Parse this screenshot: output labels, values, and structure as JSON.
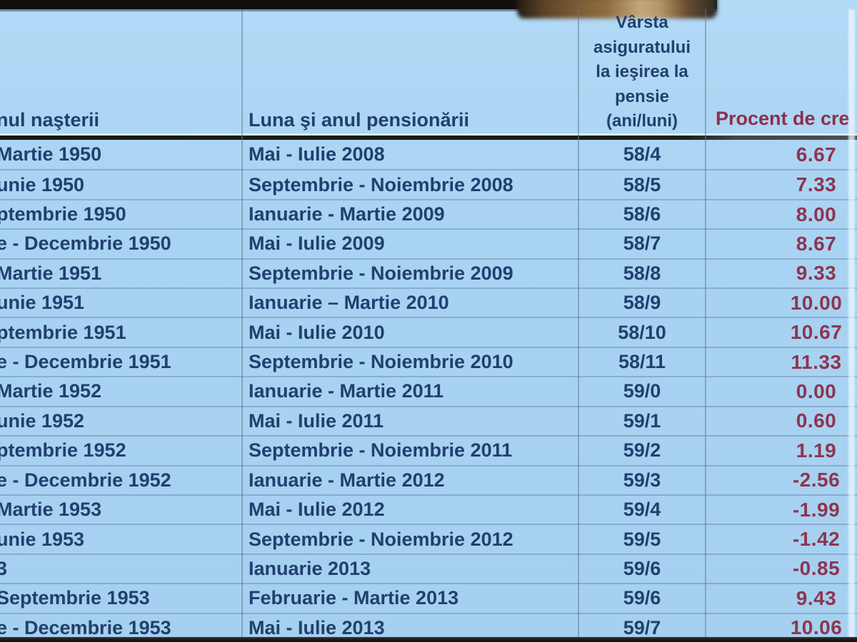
{
  "table": {
    "headers": {
      "birth": "nul naşterii",
      "pension": "Luna şi anul pensionării",
      "age": "Vârsta\nasiguratului\nla ieşirea la\npensie\n(ani/luni)",
      "procent": "Procent de cre"
    },
    "rows": [
      {
        "nastere": "Martie 1950",
        "pensionare": "Mai - Iulie 2008",
        "varsta": "58/4",
        "procent": "6.67"
      },
      {
        "nastere": "unie 1950",
        "pensionare": "Septembrie - Noiembrie 2008",
        "varsta": "58/5",
        "procent": "7.33"
      },
      {
        "nastere": "ptembrie 1950",
        "pensionare": "Ianuarie - Martie 2009",
        "varsta": "58/6",
        "procent": "8.00"
      },
      {
        "nastere": "e - Decembrie 1950",
        "pensionare": "Mai - Iulie 2009",
        "varsta": "58/7",
        "procent": "8.67"
      },
      {
        "nastere": "Martie 1951",
        "pensionare": "Septembrie - Noiembrie 2009",
        "varsta": "58/8",
        "procent": "9.33"
      },
      {
        "nastere": "unie 1951",
        "pensionare": "Ianuarie – Martie 2010",
        "varsta": "58/9",
        "procent": "10.00"
      },
      {
        "nastere": "ptembrie 1951",
        "pensionare": "Mai - Iulie 2010",
        "varsta": "58/10",
        "procent": "10.67"
      },
      {
        "nastere": "e - Decembrie 1951",
        "pensionare": "Septembrie - Noiembrie 2010",
        "varsta": "58/11",
        "procent": "11.33"
      },
      {
        "nastere": "Martie 1952",
        "pensionare": "Ianuarie - Martie 2011",
        "varsta": "59/0",
        "procent": "0.00"
      },
      {
        "nastere": "unie 1952",
        "pensionare": "Mai - Iulie 2011",
        "varsta": "59/1",
        "procent": "0.60"
      },
      {
        "nastere": "ptembrie 1952",
        "pensionare": "Septembrie - Noiembrie 2011",
        "varsta": "59/2",
        "procent": "1.19"
      },
      {
        "nastere": "e - Decembrie 1952",
        "pensionare": "Ianuarie - Martie 2012",
        "varsta": "59/3",
        "procent": "-2.56"
      },
      {
        "nastere": "Martie 1953",
        "pensionare": "Mai - Iulie 2012",
        "varsta": "59/4",
        "procent": "-1.99"
      },
      {
        "nastere": "unie 1953",
        "pensionare": "Septembrie - Noiembrie 2012",
        "varsta": "59/5",
        "procent": "-1.42"
      },
      {
        "nastere": "3",
        "pensionare": "Ianuarie 2013",
        "varsta": "59/6",
        "procent": "-0.85"
      },
      {
        "nastere": "Septembrie 1953",
        "pensionare": "Februarie - Martie 2013",
        "varsta": "59/6",
        "procent": "9.43"
      },
      {
        "nastere": "e - Decembrie 1953",
        "pensionare": "Mai - Iulie 2013",
        "varsta": "59/7",
        "procent": "10.06"
      }
    ]
  },
  "colors": {
    "table_background": "#a9d3f2",
    "text_navy": "#21406e",
    "text_maroon": "#8d3550",
    "top_band": "#12100d"
  }
}
